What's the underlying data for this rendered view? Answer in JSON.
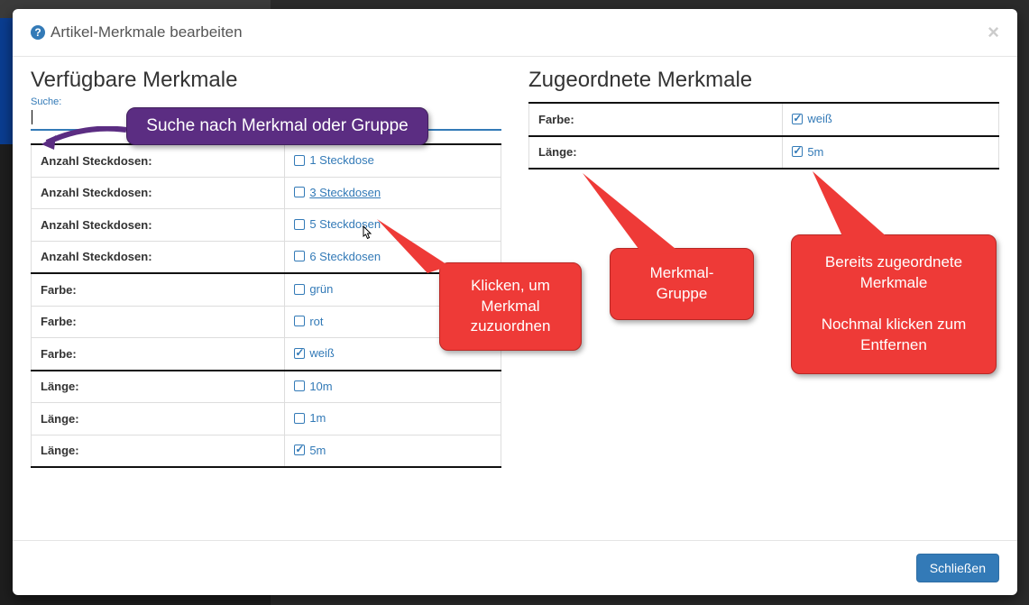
{
  "header": {
    "title": "Artikel-Merkmale bearbeiten"
  },
  "left": {
    "title": "Verfügbare Merkmale",
    "search_label": "Suche:",
    "rows": [
      {
        "key": "Anzahl Steckdosen:",
        "val": "1 Steckdose",
        "checked": false,
        "groupTop": true,
        "groupBot": false,
        "underline": false
      },
      {
        "key": "Anzahl Steckdosen:",
        "val": "3 Steckdosen",
        "checked": false,
        "groupTop": false,
        "groupBot": false,
        "underline": true
      },
      {
        "key": "Anzahl Steckdosen:",
        "val": "5 Steckdosen",
        "checked": false,
        "groupTop": false,
        "groupBot": false,
        "underline": false
      },
      {
        "key": "Anzahl Steckdosen:",
        "val": "6 Steckdosen",
        "checked": false,
        "groupTop": false,
        "groupBot": true,
        "underline": false
      },
      {
        "key": "Farbe:",
        "val": "grün",
        "checked": false,
        "groupTop": true,
        "groupBot": false,
        "underline": false
      },
      {
        "key": "Farbe:",
        "val": "rot",
        "checked": false,
        "groupTop": false,
        "groupBot": false,
        "underline": false
      },
      {
        "key": "Farbe:",
        "val": "weiß",
        "checked": true,
        "groupTop": false,
        "groupBot": true,
        "underline": false
      },
      {
        "key": "Länge:",
        "val": "10m",
        "checked": false,
        "groupTop": true,
        "groupBot": false,
        "underline": false
      },
      {
        "key": "Länge:",
        "val": "1m",
        "checked": false,
        "groupTop": false,
        "groupBot": false,
        "underline": false
      },
      {
        "key": "Länge:",
        "val": "5m",
        "checked": true,
        "groupTop": false,
        "groupBot": true,
        "underline": false
      }
    ]
  },
  "right": {
    "title": "Zugeordnete Merkmale",
    "rows": [
      {
        "key": "Farbe:",
        "val": "weiß",
        "checked": true,
        "groupTop": true,
        "groupBot": true
      },
      {
        "key": "Länge:",
        "val": "5m",
        "checked": true,
        "groupTop": true,
        "groupBot": true
      }
    ]
  },
  "footer": {
    "close": "Schließen"
  },
  "callouts": {
    "search": "Suche nach Merkmal oder Gruppe",
    "click_assign": "Klicken, um Merkmal zuzuordnen",
    "group": "Merkmal-Gruppe",
    "assigned": "Bereits zugeordnete Merkmale\n\nNochmal klicken zum Entfernen"
  },
  "colors": {
    "link": "#337ab7",
    "purple": "#5b2d82",
    "red": "#ee3a37"
  }
}
